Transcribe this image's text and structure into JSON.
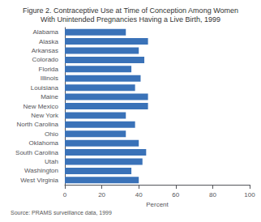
{
  "chart_data": {
    "type": "bar",
    "orientation": "horizontal",
    "title": "Figure 2. Contraceptive Use at Time of Conception Among Women",
    "subtitle": "With Unintended Pregnancies Having a Live Birth, 1999",
    "annotations": [
      "Source: PRAMS surveillance data, 1999"
    ],
    "categories": [
      "Alabama",
      "Alaska",
      "Arkansas",
      "Colorado",
      "Florida",
      "Illinois",
      "Louisiana",
      "Maine",
      "New Mexico",
      "New York",
      "North Carolina",
      "Ohio",
      "Oklahoma",
      "South Carolina",
      "Utah",
      "Washington",
      "West Virginia"
    ],
    "values": [
      33,
      45,
      40,
      43,
      36,
      41,
      38,
      45,
      45,
      33,
      38,
      33,
      40,
      44,
      42,
      36,
      40
    ],
    "color": "#3a72b8",
    "xlabel": "Percent",
    "xlim": [
      0,
      100
    ],
    "xticks": [
      0,
      20,
      40,
      60,
      80,
      100
    ],
    "grid": false
  }
}
